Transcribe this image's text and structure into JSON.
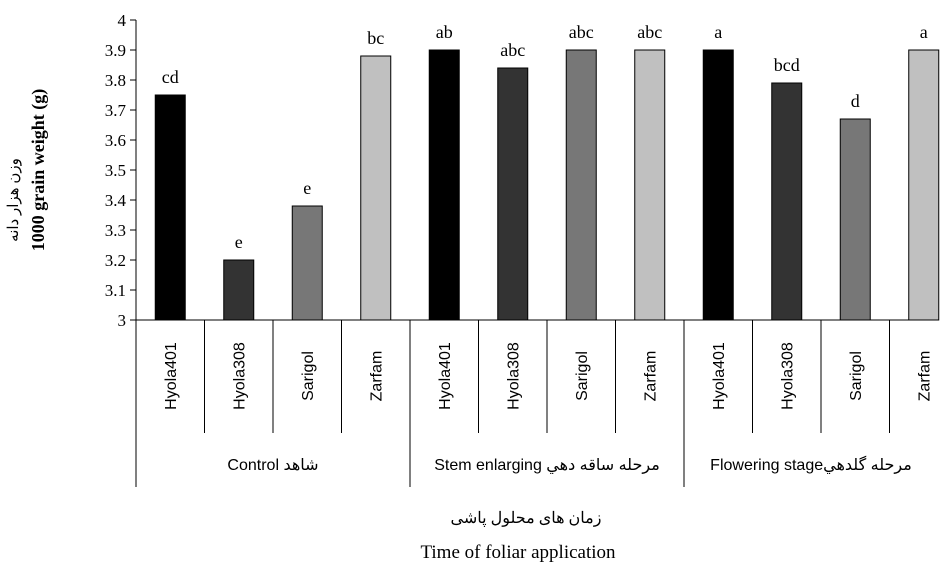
{
  "colors": {
    "Hyola401": "#000000",
    "Hyola308": "#333333",
    "Sarigol": "#777777",
    "Zarfam": "#c0c0c0",
    "axis": "#000000"
  },
  "chart_data": {
    "type": "bar",
    "ylabel_fa": "وزن هزار دانه",
    "ylabel": "1000 grain weight (g)",
    "xlabel_fa": "زمان های محلول پاشی",
    "xlabel": "Time of foliar application",
    "ylim": [
      3,
      4
    ],
    "yticks": [
      "3",
      "3.1",
      "3.2",
      "3.3",
      "3.4",
      "3.5",
      "3.6",
      "3.7",
      "3.8",
      "3.9",
      "4"
    ],
    "grid": false,
    "groups": [
      {
        "label": "Control شاهد",
        "bars": [
          {
            "cultivar": "Hyola401",
            "value": 3.75,
            "letter": "cd"
          },
          {
            "cultivar": "Hyola308",
            "value": 3.2,
            "letter": "e"
          },
          {
            "cultivar": "Sarigol",
            "value": 3.38,
            "letter": "e"
          },
          {
            "cultivar": "Zarfam",
            "value": 3.88,
            "letter": "bc"
          }
        ]
      },
      {
        "label": "Stem enlarging مرحله ساقه دهي",
        "bars": [
          {
            "cultivar": "Hyola401",
            "value": 3.9,
            "letter": "ab"
          },
          {
            "cultivar": "Hyola308",
            "value": 3.84,
            "letter": "abc"
          },
          {
            "cultivar": "Sarigol",
            "value": 3.9,
            "letter": "abc"
          },
          {
            "cultivar": "Zarfam",
            "value": 3.9,
            "letter": "abc"
          }
        ]
      },
      {
        "label": "Flowering stageمرحله گلدهي",
        "bars": [
          {
            "cultivar": "Hyola401",
            "value": 3.9,
            "letter": "a"
          },
          {
            "cultivar": "Hyola308",
            "value": 3.79,
            "letter": "bcd"
          },
          {
            "cultivar": "Sarigol",
            "value": 3.67,
            "letter": "d"
          },
          {
            "cultivar": "Zarfam",
            "value": 3.9,
            "letter": "a"
          }
        ]
      }
    ]
  }
}
